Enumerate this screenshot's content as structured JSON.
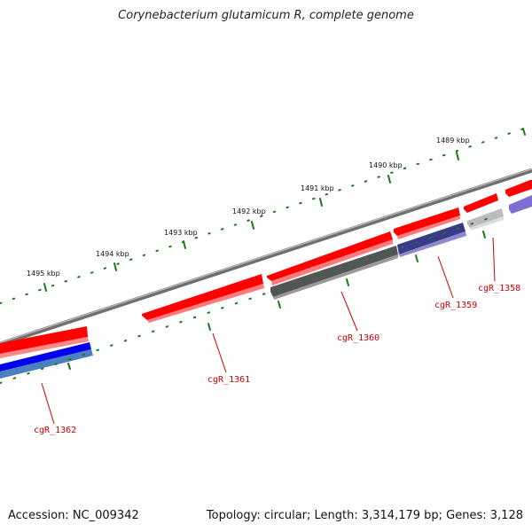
{
  "title": "Corynebacterium glutamicum R, complete genome",
  "accession": "Accession: NC_009342",
  "summary": "Topology: circular; Length: 3,314,179 bp; Genes: 3,128",
  "ruler_labels": [
    "1489 kbp",
    "1490 kbp",
    "1491 kbp",
    "1492 kbp",
    "1493 kbp",
    "1494 kbp",
    "1495 kbp"
  ],
  "gene_labels": [
    "cgR_1358",
    "cgR_1359",
    "cgR_1360",
    "cgR_1361",
    "cgR_1362"
  ],
  "colors": {
    "forward_gene": "#ff0000",
    "reverse_gene_dark": "#555555",
    "reverse_gene_navy": "#3a3a8a",
    "reverse_gene_light": "#bbbbbb",
    "reverse_gene_blue": "#0000ee",
    "reverse_gene_purple": "#7b6fd6",
    "backbone": "#777777",
    "ticks": "#1a7a1a",
    "label_text": "#cc0000"
  }
}
